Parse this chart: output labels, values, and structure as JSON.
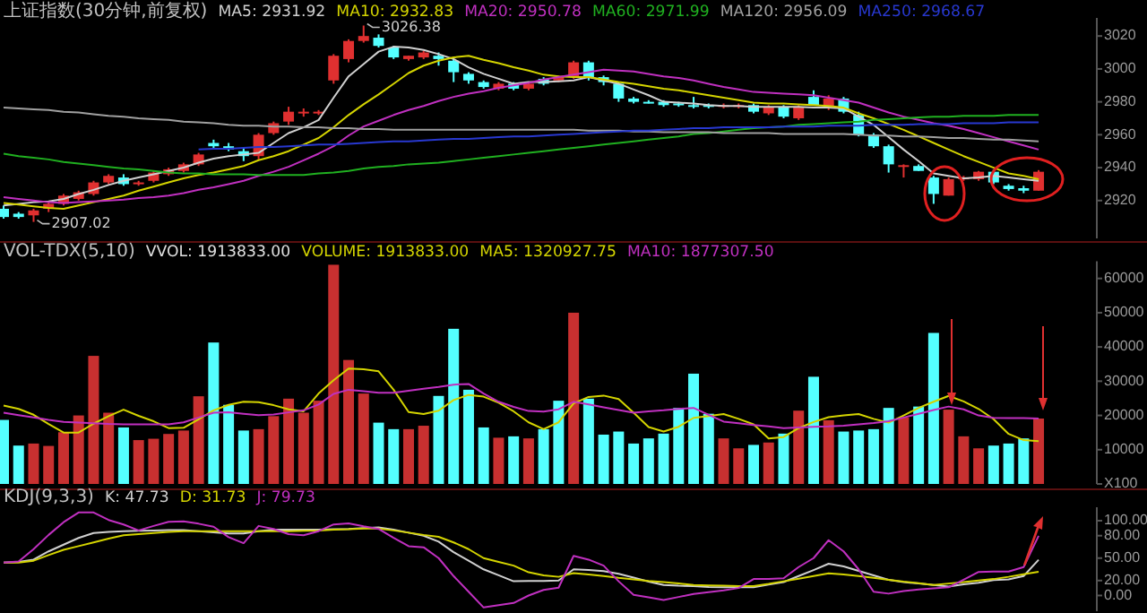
{
  "chart_data": [
    {
      "type": "candlestick",
      "title": "上证指数(30分钟,前复权)",
      "tick_labels": "y",
      "ylim": [
        2897,
        3031
      ],
      "yticks": [
        2920,
        2940,
        2960,
        2980,
        3000,
        3020
      ],
      "categories": [
        null,
        null,
        null,
        null,
        null,
        null,
        null,
        null,
        null,
        null,
        null,
        null,
        null,
        null,
        null,
        null,
        null,
        null,
        null,
        null,
        null,
        null,
        null,
        null,
        null,
        null,
        null,
        null,
        null,
        null,
        null,
        null,
        null,
        null,
        null,
        null,
        null,
        null,
        null,
        null,
        null,
        null,
        null,
        null,
        null,
        null,
        null,
        null,
        null,
        null,
        null,
        null,
        null,
        null,
        null,
        null,
        null,
        null,
        null,
        null,
        null,
        null,
        null,
        null,
        null,
        null,
        null,
        null,
        null,
        null
      ],
      "colors": [
        "#54ffff",
        "#54ffff",
        "#e03030",
        "#e03030",
        "#e03030",
        "#e03030",
        "#e03030",
        "#e03030",
        "#54ffff",
        "#e03030",
        "#e03030",
        "#e03030",
        "#e03030",
        "#e03030",
        "#54ffff",
        "#54ffff",
        "#54ffff",
        "#e03030",
        "#e03030",
        "#e03030",
        "#e03030",
        "#e03030",
        "#e03030",
        "#e03030",
        "#e03030",
        "#54ffff",
        "#54ffff",
        "#e03030",
        "#e03030",
        "#54ffff",
        "#54ffff",
        "#54ffff",
        "#54ffff",
        "#e03030",
        "#54ffff",
        "#e03030",
        "#54ffff",
        "#e03030",
        "#e03030",
        "#54ffff",
        "#54ffff",
        "#54ffff",
        "#54ffff",
        "#54ffff",
        "#54ffff",
        "#54ffff",
        "#54ffff",
        "#54ffff",
        "#e03030",
        "#e03030",
        "#54ffff",
        "#e03030",
        "#54ffff",
        "#e03030",
        "#54ffff",
        "#e03030",
        "#54ffff",
        "#54ffff",
        "#54ffff",
        "#54ffff",
        "#e03030",
        "#54ffff",
        "#54ffff",
        "#e03030",
        "#e03030",
        "#e03030",
        "#54ffff",
        "#54ffff",
        "#54ffff",
        "#e03030"
      ],
      "ohlc": [
        [
          2915,
          2917,
          2909,
          2910
        ],
        [
          2912,
          2913,
          2909,
          2910
        ],
        [
          2911,
          2915,
          2907.02,
          2914
        ],
        [
          2915,
          2919,
          2913,
          2918
        ],
        [
          2918,
          2924,
          2917,
          2923
        ],
        [
          2921,
          2926,
          2920,
          2925
        ],
        [
          2924,
          2932,
          2923,
          2931
        ],
        [
          2931,
          2936,
          2930,
          2935
        ],
        [
          2934,
          2936,
          2929,
          2930
        ],
        [
          2930,
          2932,
          2929,
          2931
        ],
        [
          2932,
          2938,
          2931,
          2937
        ],
        [
          2936,
          2940,
          2935,
          2939
        ],
        [
          2938,
          2943,
          2937,
          2942
        ],
        [
          2942,
          2949,
          2941,
          2948
        ],
        [
          2955,
          2957,
          2951,
          2953
        ],
        [
          2953,
          2955,
          2950,
          2951
        ],
        [
          2950,
          2952,
          2944,
          2947
        ],
        [
          2947,
          2961,
          2945,
          2960
        ],
        [
          2961,
          2968,
          2960,
          2967
        ],
        [
          2968,
          2977,
          2966,
          2974
        ],
        [
          2973,
          2976,
          2971,
          2974
        ],
        [
          2973,
          2975,
          2972,
          2974
        ],
        [
          2993,
          3009,
          2991,
          3008
        ],
        [
          3006,
          3018,
          3004,
          3017
        ],
        [
          3017,
          3026.38,
          3016,
          3020
        ],
        [
          3019,
          3021,
          3013,
          3014
        ],
        [
          3013,
          3014,
          3006,
          3007
        ],
        [
          3006,
          3008,
          3005,
          3008
        ],
        [
          3007,
          3011,
          3006,
          3010
        ],
        [
          3008,
          3010,
          3002,
          3006
        ],
        [
          3005,
          3006,
          2992,
          2998
        ],
        [
          2997,
          2998,
          2991,
          2993
        ],
        [
          2992,
          2993,
          2988,
          2989
        ],
        [
          2988,
          2992,
          2987,
          2991
        ],
        [
          2991,
          2992,
          2987,
          2988
        ],
        [
          2988,
          2992,
          2987,
          2991
        ],
        [
          2994,
          2995,
          2990,
          2991
        ],
        [
          2993,
          2996,
          2992,
          2995
        ],
        [
          2995,
          3005,
          2994,
          3004
        ],
        [
          3004,
          3005,
          2993,
          2995
        ],
        [
          2995,
          2996,
          2990,
          2992
        ],
        [
          2991,
          2992,
          2980,
          2982
        ],
        [
          2982,
          2983,
          2979,
          2980
        ],
        [
          2980,
          2981,
          2979,
          2979
        ],
        [
          2980,
          2981,
          2977,
          2978
        ],
        [
          2979,
          2980,
          2977,
          2978
        ],
        [
          2978,
          2983,
          2976,
          2977
        ],
        [
          2978,
          2979,
          2976,
          2977
        ],
        [
          2977,
          2979,
          2976,
          2978
        ],
        [
          2977,
          2979,
          2976,
          2978
        ],
        [
          2978,
          2979,
          2973,
          2974
        ],
        [
          2973,
          2978,
          2972,
          2977
        ],
        [
          2977,
          2978,
          2970,
          2971
        ],
        [
          2970,
          2978,
          2969,
          2977
        ],
        [
          2983,
          2987,
          2978,
          2978
        ],
        [
          2977,
          2984,
          2975,
          2982
        ],
        [
          2982,
          2983,
          2973,
          2974
        ],
        [
          2972,
          2974,
          2959,
          2960
        ],
        [
          2960,
          2961,
          2952,
          2953
        ],
        [
          2953,
          2954,
          2937,
          2942
        ],
        [
          2941,
          2942,
          2934,
          2941.5
        ],
        [
          2941,
          2942,
          2938,
          2938
        ],
        [
          2934,
          2935,
          2918,
          2924
        ],
        [
          2923,
          2934,
          2923,
          2933
        ],
        [
          2933,
          2935,
          2932,
          2934
        ],
        [
          2933,
          2938,
          2932,
          2937.5
        ],
        [
          2937.5,
          2939,
          2930,
          2931
        ],
        [
          2929,
          2930,
          2926,
          2927
        ],
        [
          2927.5,
          2929,
          2924.5,
          2926
        ],
        [
          2926,
          2938.5,
          2926,
          2937.5
        ]
      ],
      "annotations": [
        "3026.38",
        "2907.02"
      ],
      "series": [
        {
          "name": "MA5: 2931.92",
          "type": "line",
          "color": "#d0d0d0",
          "values": [
            2917,
            2918,
            2919,
            2919.5,
            2921,
            2924,
            2926.5,
            2929.5,
            2932,
            2934,
            2936,
            2938,
            2940,
            2943,
            2945.5,
            2947,
            2948,
            2949,
            2955,
            2961,
            2964.5,
            2969,
            2982.5,
            2995.5,
            3003,
            3010.5,
            3013.5,
            3013,
            3011.5,
            3009,
            3006,
            3001,
            2997,
            2994,
            2991,
            2992,
            2992,
            2992.5,
            2993,
            2995,
            2993,
            2991,
            2987.5,
            2984,
            2980,
            2979.5,
            2979,
            2978,
            2977.5,
            2977.5,
            2977,
            2977,
            2977,
            2977,
            2976.5,
            2976.5,
            2976,
            2971,
            2966,
            2958.5,
            2951,
            2944,
            2936.5,
            2935,
            2933.5,
            2934,
            2935,
            2934,
            2933,
            2932
          ]
        },
        {
          "name": "MA10: 2932.83",
          "type": "line",
          "color": "#d4d400",
          "values": [
            2918.5,
            2917.5,
            2916.5,
            2915.5,
            2915,
            2917,
            2919,
            2921,
            2923,
            2926,
            2928.5,
            2931,
            2933.5,
            2935.5,
            2937,
            2939,
            2941,
            2944.5,
            2947,
            2950,
            2954,
            2958,
            2964.5,
            2972,
            2978.5,
            2984.5,
            2991,
            2997.5,
            3002,
            3005,
            3007,
            3008,
            3005.5,
            3003.5,
            3001,
            2999,
            2996.5,
            2995.5,
            2995,
            2995,
            2993.5,
            2992,
            2991,
            2989.5,
            2988,
            2987,
            2985.5,
            2984,
            2982.5,
            2981,
            2979.5,
            2979,
            2979,
            2978.5,
            2978,
            2977.5,
            2976.5,
            2973,
            2970,
            2966.5,
            2963,
            2959,
            2955,
            2951,
            2947,
            2943.5,
            2940,
            2936.5,
            2935,
            2933
          ]
        },
        {
          "name": "MA20: 2950.78",
          "type": "line",
          "color": "#c030c0",
          "values": [
            2922,
            2921,
            2920,
            2919,
            2918.5,
            2919,
            2919.5,
            2920,
            2920.5,
            2921.5,
            2922,
            2923,
            2924.5,
            2926.5,
            2928,
            2930,
            2932,
            2935,
            2937.5,
            2940.5,
            2944.5,
            2948.5,
            2953,
            2959.5,
            2965,
            2968.5,
            2972,
            2975,
            2977.5,
            2980.5,
            2983,
            2985,
            2986.5,
            2988.5,
            2990,
            2991.5,
            2993.5,
            2995,
            2996.5,
            2998,
            2999.5,
            2999,
            2998.5,
            2997,
            2995.5,
            2994.5,
            2993,
            2991,
            2989,
            2987.5,
            2986,
            2985.5,
            2985,
            2984.5,
            2984,
            2982.5,
            2981,
            2979.5,
            2976.5,
            2973.5,
            2971,
            2969,
            2967,
            2965.5,
            2963.5,
            2961,
            2958.5,
            2956,
            2953.5,
            2951
          ]
        },
        {
          "name": "MA60: 2971.99",
          "type": "line",
          "color": "#20b020",
          "values": [
            2948.5,
            2947,
            2946,
            2945,
            2943.5,
            2942.5,
            2941.5,
            2940.5,
            2939.5,
            2939,
            2938,
            2937,
            2936.5,
            2936.5,
            2936,
            2936,
            2936,
            2935.5,
            2935.5,
            2935.5,
            2935.5,
            2936.5,
            2937,
            2938,
            2939.5,
            2940.5,
            2941,
            2942,
            2942.5,
            2943,
            2944,
            2945,
            2946,
            2947,
            2948,
            2949,
            2950,
            2951,
            2952,
            2953,
            2954,
            2955,
            2956,
            2957,
            2958,
            2959,
            2960.5,
            2961,
            2962,
            2963,
            2964,
            2964.5,
            2965,
            2966,
            2966.5,
            2967,
            2967.5,
            2968,
            2969,
            2969.5,
            2970,
            2970.5,
            2971,
            2971,
            2971.5,
            2971.5,
            2971.5,
            2972,
            2972,
            2972
          ]
        },
        {
          "name": "MA120: 2956.09",
          "type": "line",
          "color": "#a0a0a0",
          "values": [
            2976.5,
            2976,
            2975.5,
            2975,
            2974,
            2973.5,
            2972.5,
            2971.5,
            2971,
            2970,
            2969.5,
            2969,
            2968,
            2967.5,
            2967,
            2966,
            2965.5,
            2965.5,
            2965,
            2965,
            2964.5,
            2964.5,
            2964,
            2964,
            2963.5,
            2963.5,
            2963,
            2963,
            2963,
            2963,
            2963,
            2963,
            2963,
            2963,
            2963,
            2963,
            2963,
            2963,
            2963,
            2962.5,
            2962.5,
            2962.5,
            2962,
            2962,
            2961.5,
            2961.5,
            2961.5,
            2961.5,
            2961,
            2961,
            2961,
            2961,
            2960.5,
            2960.5,
            2960.5,
            2960.5,
            2960.5,
            2960,
            2959.5,
            2959.5,
            2959,
            2959,
            2958.5,
            2958,
            2958,
            2957.5,
            2957,
            2957,
            2956.5,
            2956
          ]
        },
        {
          "name": "MA250: 2968.67",
          "type": "line",
          "color": "#2838d0",
          "values": [
            null,
            null,
            null,
            null,
            null,
            null,
            null,
            null,
            null,
            null,
            null,
            null,
            null,
            2951,
            2951.5,
            2951.5,
            2952,
            2952.5,
            2952.5,
            2953,
            2953.5,
            2954,
            2954,
            2954.5,
            2955,
            2955.5,
            2956,
            2956,
            2956.5,
            2957,
            2957.5,
            2957.5,
            2958,
            2958.5,
            2959,
            2959,
            2959.5,
            2960,
            2960.5,
            2961,
            2961.5,
            2962,
            2962.5,
            2962.5,
            2963,
            2963.5,
            2964,
            2964,
            2964.5,
            2964.5,
            2964.5,
            2964.5,
            2965,
            2965,
            2965,
            2965.5,
            2965.5,
            2965.5,
            2966,
            2966,
            2966,
            2966.5,
            2966.5,
            2966.5,
            2967,
            2967,
            2967,
            2967.5,
            2967.5,
            2967.5
          ]
        }
      ]
    },
    {
      "type": "bar",
      "title": "VOL-TDX(5,10)",
      "subtitle": "VVOL: 1913833.00",
      "tick_labels": "y",
      "ylim": [
        0,
        65000
      ],
      "yticks": [
        {
          "value": 0,
          "label": "X100"
        },
        10000,
        20000,
        30000,
        40000,
        50000,
        60000
      ],
      "annotations": [
        "VOLUME: 1913833.00"
      ],
      "categories": [
        null,
        null,
        null,
        null,
        null,
        null,
        null,
        null,
        null,
        null,
        null,
        null,
        null,
        null,
        null,
        null,
        null,
        null,
        null,
        null,
        null,
        null,
        null,
        null,
        null,
        null,
        null,
        null,
        null,
        null,
        null,
        null,
        null,
        null,
        null,
        null,
        null,
        null,
        null,
        null,
        null,
        null,
        null,
        null,
        null,
        null,
        null,
        null,
        null,
        null,
        null,
        null,
        null,
        null,
        null,
        null,
        null,
        null,
        null,
        null,
        null,
        null,
        null,
        null,
        null,
        null,
        null,
        null,
        null,
        null
      ],
      "values": [
        18700,
        11200,
        11800,
        11100,
        15100,
        20000,
        37400,
        20800,
        16500,
        12800,
        13200,
        14600,
        15600,
        25600,
        41300,
        23100,
        15600,
        16000,
        19800,
        24900,
        20800,
        24300,
        64000,
        36200,
        26400,
        17900,
        16000,
        16000,
        17000,
        25700,
        45300,
        27500,
        16500,
        13500,
        13900,
        13300,
        16000,
        24300,
        50000,
        24900,
        14400,
        15300,
        11800,
        13300,
        14700,
        22200,
        32200,
        20500,
        13300,
        10400,
        11400,
        12100,
        14700,
        21400,
        31300,
        18600,
        15300,
        15600,
        16000,
        22200,
        19400,
        22600,
        44100,
        21700,
        13900,
        10400,
        11200,
        11800,
        13300,
        19100
      ],
      "colors": [
        "#54ffff",
        "#54ffff",
        "#c83030",
        "#c83030",
        "#c83030",
        "#c83030",
        "#c83030",
        "#c83030",
        "#54ffff",
        "#c83030",
        "#c83030",
        "#c83030",
        "#c83030",
        "#c83030",
        "#54ffff",
        "#54ffff",
        "#54ffff",
        "#c83030",
        "#c83030",
        "#c83030",
        "#c83030",
        "#c83030",
        "#c83030",
        "#c83030",
        "#c83030",
        "#54ffff",
        "#54ffff",
        "#c83030",
        "#c83030",
        "#54ffff",
        "#54ffff",
        "#54ffff",
        "#54ffff",
        "#c83030",
        "#54ffff",
        "#c83030",
        "#54ffff",
        "#54ffff",
        "#c83030",
        "#54ffff",
        "#54ffff",
        "#54ffff",
        "#54ffff",
        "#54ffff",
        "#54ffff",
        "#54ffff",
        "#54ffff",
        "#54ffff",
        "#c83030",
        "#c83030",
        "#54ffff",
        "#c83030",
        "#54ffff",
        "#c83030",
        "#54ffff",
        "#c83030",
        "#54ffff",
        "#54ffff",
        "#54ffff",
        "#54ffff",
        "#c83030",
        "#54ffff",
        "#54ffff",
        "#c83030",
        "#c83030",
        "#c83030",
        "#54ffff",
        "#54ffff",
        "#54ffff",
        "#c83030"
      ],
      "series": [
        {
          "name": "MA5: 1320927.75",
          "type": "line",
          "color": "#d4d400",
          "values": [
            22900,
            21900,
            20200,
            17500,
            15000,
            15000,
            17600,
            19800,
            21700,
            19900,
            18300,
            16300,
            16400,
            18900,
            21500,
            23100,
            24000,
            23900,
            23000,
            21800,
            21200,
            26400,
            30300,
            33700,
            33500,
            32900,
            27500,
            21000,
            20400,
            21400,
            24500,
            26000,
            25500,
            23700,
            21200,
            18000,
            16000,
            18000,
            23500,
            25400,
            25800,
            24800,
            20800,
            16600,
            15300,
            16700,
            19300,
            19800,
            20400,
            19000,
            17400,
            13300,
            13700,
            16300,
            18100,
            19500,
            20000,
            20400,
            19000,
            17900,
            20000,
            22200,
            24000,
            25700,
            24100,
            21900,
            18900,
            14600,
            12800,
            12500
          ]
        },
        {
          "name": "MA10: 1877307.50",
          "type": "line",
          "color": "#c030c0",
          "values": [
            20800,
            20100,
            19400,
            18700,
            18100,
            17900,
            17700,
            17500,
            17400,
            17400,
            17400,
            17400,
            18000,
            19400,
            20800,
            20900,
            20500,
            20100,
            20300,
            20900,
            21500,
            23200,
            26300,
            27500,
            27100,
            26600,
            26600,
            27200,
            27800,
            28300,
            29000,
            29200,
            26400,
            24000,
            22500,
            21300,
            21100,
            21800,
            24000,
            23200,
            22400,
            21600,
            20800,
            21200,
            21500,
            21900,
            22200,
            20200,
            18200,
            17700,
            17200,
            16800,
            16300,
            16500,
            16700,
            16800,
            17000,
            17400,
            17800,
            18300,
            19400,
            20500,
            21600,
            22600,
            21800,
            20000,
            19300,
            19200,
            19200,
            19100
          ]
        }
      ]
    },
    {
      "type": "line",
      "title": "KDJ(9,3,3)",
      "tick_labels": "y",
      "ylim": [
        -21,
        118
      ],
      "yticks": [
        {
          "value": 0,
          "label": "0.00"
        },
        {
          "value": 20,
          "label": "20.00"
        },
        {
          "value": 50,
          "label": "50.00"
        },
        {
          "value": 80,
          "label": "80.00"
        },
        {
          "value": 100,
          "label": "100.00"
        }
      ],
      "categories": [
        null,
        null,
        null,
        null,
        null,
        null,
        null,
        null,
        null,
        null,
        null,
        null,
        null,
        null,
        null,
        null,
        null,
        null,
        null,
        null,
        null,
        null,
        null,
        null,
        null,
        null,
        null,
        null,
        null,
        null,
        null,
        null,
        null,
        null,
        null,
        null,
        null,
        null,
        null,
        null,
        null,
        null,
        null,
        null,
        null,
        null,
        null,
        null,
        null,
        null,
        null,
        null,
        null,
        null,
        null,
        null,
        null,
        null,
        null,
        null,
        null,
        null,
        null,
        null,
        null,
        null,
        null,
        null,
        null,
        null
      ],
      "series": [
        {
          "name": "K: 47.73",
          "color": "#d0d0d0",
          "values": [
            44,
            45,
            48,
            59,
            68,
            77,
            83.5,
            85,
            86,
            86.5,
            87,
            87.5,
            87.5,
            86,
            84.5,
            83,
            83,
            86,
            88,
            88,
            88,
            88,
            88.5,
            89,
            90,
            91,
            88,
            84,
            80,
            72,
            58,
            46.5,
            35,
            27,
            19,
            19.5,
            19.5,
            20,
            35,
            34,
            32.5,
            29,
            24,
            18.5,
            14,
            13,
            12.5,
            11.5,
            11,
            11,
            11,
            14.5,
            18,
            26,
            34,
            42.5,
            39,
            33,
            27,
            21,
            18,
            16,
            14,
            12,
            15,
            17,
            20.5,
            21.5,
            26,
            47.73
          ]
        },
        {
          "name": "D: 31.73",
          "color": "#d4d400",
          "values": [
            44,
            44,
            46.5,
            54,
            61,
            66,
            71,
            76,
            80.5,
            82,
            83.5,
            85,
            86,
            86,
            86,
            86,
            86,
            86,
            86,
            86,
            86.5,
            87,
            88,
            88.5,
            89.5,
            89.5,
            87,
            84,
            81,
            78.5,
            71,
            62,
            50,
            45,
            40,
            31,
            27,
            25,
            30,
            28,
            26,
            23.5,
            21.5,
            19.5,
            18,
            16,
            14,
            13.5,
            13,
            12.5,
            12.5,
            15.5,
            19,
            22.5,
            26,
            29.5,
            28,
            26,
            23.5,
            21,
            18.5,
            16.5,
            14,
            16,
            18,
            20,
            22,
            25,
            28.5,
            31.73
          ]
        },
        {
          "name": "J: 79.73",
          "color": "#c030c0",
          "values": [
            44,
            45.5,
            62,
            81,
            98,
            111,
            111,
            101,
            95,
            87,
            93,
            98.5,
            99,
            96,
            92,
            78,
            70,
            93,
            89,
            82,
            80.5,
            86,
            95,
            96.5,
            92.5,
            89,
            77,
            66,
            64.5,
            50,
            26,
            5,
            -16,
            -13,
            -10,
            0,
            7.5,
            10.5,
            53,
            48,
            40,
            19,
            1,
            -2.5,
            -6,
            -2,
            2,
            4.5,
            7,
            10,
            22,
            22,
            23,
            38,
            50,
            74,
            59,
            35,
            5,
            2.5,
            6,
            8,
            9.5,
            11,
            21,
            31.5,
            32,
            32,
            38,
            79.73
          ]
        }
      ]
    }
  ]
}
